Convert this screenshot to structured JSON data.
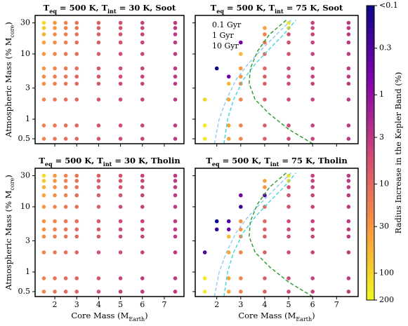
{
  "chart_data": [
    {
      "type": "scatter",
      "title": [
        "T",
        "eq",
        " = 500 K, T",
        "int",
        " = 30 K, Soot"
      ],
      "ylabel": [
        "Atmospheric Mass (% M",
        "core",
        ")"
      ],
      "x": [
        1.5,
        2,
        2.5,
        3,
        4,
        5,
        6,
        7.5
      ],
      "y": [
        0.5,
        0.8,
        2,
        3.5,
        4.5,
        6,
        10,
        15,
        20,
        25,
        30
      ],
      "values": [
        [
          20,
          15,
          12,
          10,
          6,
          5,
          4,
          3
        ],
        [
          20,
          15,
          12,
          10,
          6,
          5,
          4,
          3
        ],
        [
          20,
          15,
          12,
          10,
          6,
          5,
          4,
          3
        ],
        [
          25,
          18,
          14,
          10,
          7,
          5,
          4,
          3
        ],
        [
          25,
          18,
          14,
          10,
          7,
          5,
          4,
          3
        ],
        [
          30,
          20,
          15,
          12,
          7,
          5,
          4,
          3
        ],
        [
          30,
          20,
          15,
          12,
          8,
          5,
          4,
          3
        ],
        [
          40,
          25,
          18,
          12,
          8,
          6,
          4,
          3
        ],
        [
          50,
          25,
          18,
          14,
          8,
          6,
          4,
          3
        ],
        [
          80,
          30,
          20,
          14,
          8,
          6,
          4,
          3
        ],
        [
          120,
          30,
          20,
          14,
          8,
          6,
          4,
          3
        ]
      ],
      "xlim": [
        1.1,
        7.9
      ],
      "xticks": [
        2,
        3,
        4,
        5,
        6,
        7
      ],
      "ylim": [
        0.42,
        39
      ],
      "yticks": [
        0.5,
        1,
        3,
        10,
        30
      ],
      "log_y": true,
      "series": []
    },
    {
      "type": "scatter",
      "title": [
        "T",
        "eq",
        " = 500 K, T",
        "int",
        " = 75 K, Soot"
      ],
      "x": [
        1.5,
        2,
        2.5,
        3,
        4,
        5,
        6,
        7.5
      ],
      "y": [
        0.5,
        0.8,
        2,
        3.5,
        4.5,
        6,
        10,
        15,
        20,
        25,
        30
      ],
      "values": [
        [
          150,
          null,
          40,
          20,
          8,
          5,
          4,
          3
        ],
        [
          150,
          null,
          40,
          20,
          8,
          5,
          4,
          3
        ],
        [
          100,
          null,
          40,
          20,
          8,
          5,
          4,
          3
        ],
        [
          null,
          null,
          60,
          20,
          8,
          5,
          4,
          3
        ],
        [
          null,
          null,
          0.5,
          30,
          8,
          5,
          4,
          3
        ],
        [
          null,
          0.1,
          null,
          30,
          10,
          5,
          4,
          3
        ],
        [
          null,
          null,
          null,
          60,
          10,
          6,
          4,
          3
        ],
        [
          null,
          null,
          null,
          0.5,
          15,
          6,
          4,
          3
        ],
        [
          null,
          null,
          null,
          null,
          20,
          6,
          4,
          3
        ],
        [
          null,
          null,
          null,
          null,
          40,
          100,
          4,
          3
        ],
        [
          null,
          null,
          null,
          null,
          null,
          150,
          4,
          3
        ]
      ],
      "xlim": [
        1.1,
        7.9
      ],
      "xticks": [
        2,
        3,
        4,
        5,
        6,
        7
      ],
      "ylim": [
        0.42,
        39
      ],
      "yticks": [
        0.5,
        1,
        3,
        10,
        30
      ],
      "log_y": true,
      "series": [
        {
          "name": "0.1 Gyr",
          "color": "#8ec9ee",
          "x": [
            1.9,
            2.1,
            2.4,
            2.8,
            3.3,
            3.9,
            4.5,
            5.1
          ],
          "y": [
            0.42,
            1,
            2,
            4,
            7,
            12,
            20,
            33
          ]
        },
        {
          "name": "1 Gyr",
          "color": "#3fd6d6",
          "x": [
            2.3,
            2.45,
            2.7,
            3.1,
            3.6,
            4.2,
            4.8,
            5.3
          ],
          "y": [
            0.42,
            1,
            2,
            4,
            7,
            12,
            20,
            33
          ]
        },
        {
          "name": "10 Gyr",
          "color": "#2a9a2a",
          "x": [
            6,
            5,
            4.2,
            3.6,
            3.35,
            3.4,
            3.7,
            4.2,
            4.9
          ],
          "y": [
            0.42,
            0.7,
            1.2,
            2,
            3.5,
            6,
            11,
            20,
            33
          ]
        }
      ],
      "legend": "upper left"
    },
    {
      "type": "scatter",
      "title": [
        "T",
        "eq",
        " = 500 K, T",
        "int",
        " = 30 K, Tholin"
      ],
      "ylabel": [
        "Atmospheric Mass (% M",
        "core",
        ")"
      ],
      "xlabel": [
        "Core Mass (M",
        "Earth",
        ")"
      ],
      "x": [
        1.5,
        2,
        2.5,
        3,
        4,
        5,
        6,
        7.5
      ],
      "y": [
        0.5,
        0.8,
        2,
        3.5,
        4.5,
        6,
        10,
        15,
        20,
        25,
        30
      ],
      "values": [
        [
          20,
          14,
          11,
          9,
          6,
          4,
          3,
          3
        ],
        [
          20,
          14,
          11,
          9,
          6,
          4,
          3,
          3
        ],
        [
          22,
          15,
          12,
          10,
          6,
          5,
          4,
          3
        ],
        [
          25,
          18,
          14,
          10,
          7,
          5,
          4,
          3
        ],
        [
          25,
          18,
          14,
          10,
          7,
          5,
          4,
          3
        ],
        [
          30,
          20,
          15,
          12,
          7,
          5,
          4,
          3
        ],
        [
          30,
          20,
          15,
          12,
          8,
          5,
          4,
          3
        ],
        [
          40,
          25,
          18,
          12,
          8,
          6,
          4,
          3
        ],
        [
          50,
          25,
          18,
          14,
          8,
          6,
          4,
          3
        ],
        [
          80,
          30,
          20,
          14,
          8,
          6,
          4,
          3
        ],
        [
          120,
          30,
          20,
          14,
          8,
          6,
          4,
          3
        ]
      ],
      "xlim": [
        1.1,
        7.9
      ],
      "xticks": [
        2,
        3,
        4,
        5,
        6,
        7
      ],
      "ylim": [
        0.42,
        39
      ],
      "yticks": [
        0.5,
        1,
        3,
        10,
        30
      ],
      "log_y": true,
      "series": []
    },
    {
      "type": "scatter",
      "title": [
        "T",
        "eq",
        " = 500 K, T",
        "int",
        " = 75 K, Tholin"
      ],
      "xlabel": [
        "Core Mass (M",
        "Earth",
        ")"
      ],
      "x": [
        1.5,
        2,
        2.5,
        3,
        4,
        5,
        6,
        7.5
      ],
      "y": [
        0.5,
        0.8,
        2,
        3.5,
        4.5,
        6,
        10,
        15,
        20,
        25,
        30
      ],
      "values": [
        [
          150,
          null,
          40,
          20,
          8,
          5,
          4,
          3
        ],
        [
          150,
          null,
          40,
          20,
          8,
          5,
          4,
          3
        ],
        [
          0.3,
          null,
          40,
          20,
          8,
          5,
          4,
          3
        ],
        [
          null,
          null,
          60,
          20,
          8,
          5,
          4,
          3
        ],
        [
          null,
          0.2,
          0.5,
          30,
          8,
          5,
          4,
          3
        ],
        [
          null,
          0.1,
          0.3,
          30,
          10,
          5,
          4,
          3
        ],
        [
          null,
          null,
          null,
          0.2,
          10,
          6,
          4,
          3
        ],
        [
          null,
          null,
          null,
          0.5,
          0.3,
          6,
          4,
          3
        ],
        [
          null,
          null,
          null,
          null,
          30,
          6,
          4,
          3
        ],
        [
          null,
          null,
          null,
          null,
          40,
          100,
          4,
          3
        ],
        [
          null,
          null,
          null,
          null,
          null,
          150,
          4,
          3
        ]
      ],
      "xlim": [
        1.1,
        7.9
      ],
      "xticks": [
        2,
        3,
        4,
        5,
        6,
        7
      ],
      "ylim": [
        0.42,
        39
      ],
      "yticks": [
        0.5,
        1,
        3,
        10,
        30
      ],
      "log_y": true,
      "series": [
        {
          "color": "#8ec9ee",
          "x": [
            1.9,
            2.1,
            2.4,
            2.8,
            3.3,
            3.9,
            4.5,
            5.1
          ],
          "y": [
            0.42,
            1,
            2,
            4,
            7,
            12,
            20,
            33
          ]
        },
        {
          "color": "#3fd6d6",
          "x": [
            2.3,
            2.45,
            2.7,
            3.1,
            3.6,
            4.2,
            4.8,
            5.3
          ],
          "y": [
            0.42,
            1,
            2,
            4,
            7,
            12,
            20,
            33
          ]
        },
        {
          "color": "#2a9a2a",
          "x": [
            6,
            5,
            4.2,
            3.6,
            3.35,
            3.4,
            3.7,
            4.2,
            4.9
          ],
          "y": [
            0.42,
            0.7,
            1.2,
            2,
            3.5,
            6,
            11,
            20,
            33
          ]
        }
      ]
    }
  ],
  "colorbar": {
    "label": "Radius Increase in the Kepler Band (%)",
    "lim": [
      0.1,
      200
    ],
    "colormap": "plasma",
    "ticks": [
      {
        "value": 0.1,
        "label": "<0.1"
      },
      0.3,
      1,
      3,
      10,
      30,
      100,
      200
    ]
  }
}
